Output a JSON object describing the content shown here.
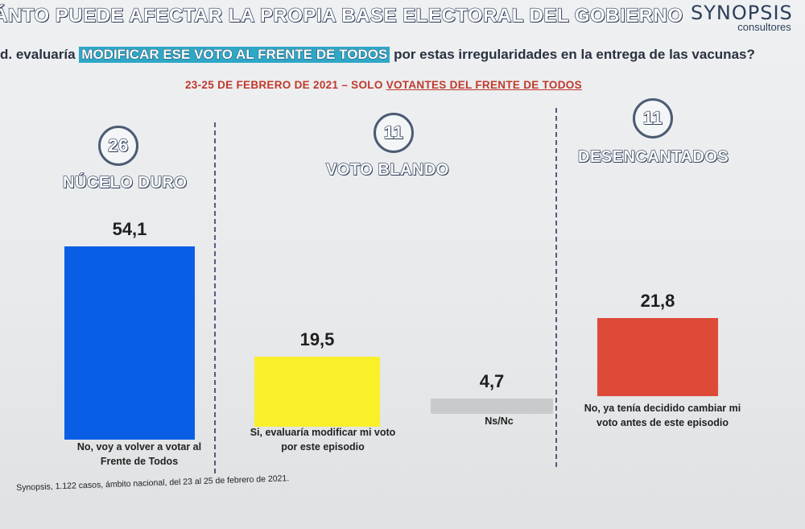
{
  "header": {
    "title": "ÁNTO PUEDE AFECTAR LA PROPIA BASE ELECTORAL DEL GOBIERNO",
    "brand": "SYNOPSIS",
    "brand_sub": "consultores"
  },
  "question": {
    "prefix": "d. evaluaría",
    "highlight": "MODIFICAR ESE VOTO AL FRENTE DE TODOS",
    "suffix": "por estas irregularidades en la entrega de las vacunas?"
  },
  "date": {
    "prefix": "23-25 DE FEBRERO DE 2021 – SOLO",
    "underlined": "VOTANTES DEL FRENTE DE TODOS"
  },
  "segments": [
    {
      "number": "26",
      "label": "NÚCELO DURO"
    },
    {
      "number": "11",
      "label": "VOTO BLANDO"
    },
    {
      "number": "11",
      "label": "DESENCANTADOS"
    }
  ],
  "source": "Synopsis, 1.122 casos, ámbito nacional, del 23 al 25 de febrero de 2021.",
  "colors": {
    "blue": "#0a5ee6",
    "yellow": "#f8f12a",
    "gray": "#c8cacb",
    "red": "#de4a38"
  },
  "chart_data": {
    "type": "bar",
    "categories": [
      "No, voy a volver a votar al Frente de Todos",
      "Si, evaluaría modificar mi voto por este episodio",
      "Ns/Nc",
      "No, ya tenía decidido cambiar mi voto antes de este episodio"
    ],
    "values": [
      54.1,
      19.5,
      4.7,
      21.8
    ],
    "value_labels": [
      "54,1",
      "19,5",
      "4,7",
      "21,8"
    ],
    "colors": [
      "#0a5ee6",
      "#f8f12a",
      "#c8cacb",
      "#de4a38"
    ]
  }
}
